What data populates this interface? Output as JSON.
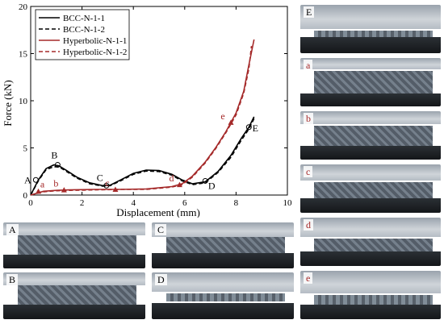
{
  "chart_data": {
    "type": "line",
    "xlabel": "Displacement (mm)",
    "ylabel": "Force (kN)",
    "xlim": [
      0,
      10
    ],
    "ylim": [
      0,
      20
    ],
    "xticks": [
      "0",
      "2",
      "4",
      "6",
      "8",
      "10"
    ],
    "yticks": [
      "0",
      "5",
      "10",
      "15",
      "20"
    ],
    "grid": false,
    "legend_position": "top-left",
    "series": [
      {
        "name": "BCC-N-1-1",
        "color": "#000000",
        "dash": "solid",
        "x": [
          0,
          0.3,
          0.6,
          0.9,
          1.1,
          1.4,
          1.8,
          2.3,
          2.8,
          3.1,
          3.5,
          4.0,
          4.5,
          5.0,
          5.5,
          5.9,
          6.3,
          6.8,
          7.3,
          7.8,
          8.2,
          8.5,
          8.7
        ],
        "y": [
          0,
          1.6,
          2.8,
          3.2,
          3.1,
          2.6,
          1.9,
          1.3,
          1.0,
          1.05,
          1.6,
          2.3,
          2.65,
          2.6,
          2.2,
          1.6,
          1.2,
          1.4,
          2.5,
          4.2,
          6.0,
          7.2,
          8.3
        ]
      },
      {
        "name": "BCC-N-1-2",
        "color": "#000000",
        "dash": "dashed",
        "x": [
          0,
          0.3,
          0.6,
          0.9,
          1.1,
          1.4,
          1.8,
          2.3,
          2.8,
          3.1,
          3.5,
          4.0,
          4.5,
          5.0,
          5.5,
          5.9,
          6.3,
          6.8,
          7.3,
          7.8,
          8.2,
          8.5,
          8.7
        ],
        "y": [
          0,
          1.5,
          2.7,
          3.0,
          3.0,
          2.5,
          1.8,
          1.2,
          0.95,
          1.0,
          1.5,
          2.2,
          2.55,
          2.5,
          2.1,
          1.5,
          1.1,
          1.3,
          2.4,
          4.0,
          5.8,
          7.0,
          8.1
        ]
      },
      {
        "name": "Hyperbolic-N-1-1",
        "color": "#a52a2a",
        "dash": "solid",
        "x": [
          0,
          0.5,
          1.0,
          1.5,
          2.5,
          3.5,
          4.5,
          5.5,
          5.9,
          6.3,
          6.8,
          7.2,
          7.6,
          8.0,
          8.3,
          8.5,
          8.7
        ],
        "y": [
          0,
          0.4,
          0.5,
          0.55,
          0.6,
          0.6,
          0.65,
          0.9,
          1.2,
          2.0,
          3.5,
          5.0,
          6.7,
          8.7,
          11.0,
          13.8,
          16.5
        ]
      },
      {
        "name": "Hyperbolic-N-1-2",
        "color": "#a52a2a",
        "dash": "dashed",
        "x": [
          0,
          0.5,
          1.0,
          1.5,
          2.5,
          3.5,
          4.5,
          5.5,
          5.9,
          6.3,
          6.8,
          7.2,
          7.6,
          8.0,
          8.3,
          8.5,
          8.6
        ],
        "y": [
          0,
          0.35,
          0.45,
          0.5,
          0.55,
          0.6,
          0.6,
          0.85,
          1.1,
          1.9,
          3.4,
          4.9,
          6.6,
          8.5,
          10.8,
          13.4,
          15.8
        ]
      }
    ],
    "annotations": [
      {
        "text": "A",
        "x": 0.2,
        "y": 1.6,
        "color": "#000000",
        "marker": "circle"
      },
      {
        "text": "B",
        "x": 1.05,
        "y": 3.2,
        "color": "#000000",
        "marker": "circle"
      },
      {
        "text": "C",
        "x": 2.95,
        "y": 1.0,
        "color": "#000000",
        "marker": "circle"
      },
      {
        "text": "D",
        "x": 6.8,
        "y": 1.5,
        "color": "#000000",
        "marker": "circle"
      },
      {
        "text": "E",
        "x": 8.5,
        "y": 7.2,
        "color": "#000000",
        "marker": "circle"
      },
      {
        "text": "a",
        "x": 0.3,
        "y": 0.4,
        "color": "#a52a2a",
        "marker": "triangle"
      },
      {
        "text": "b",
        "x": 1.3,
        "y": 0.55,
        "color": "#a52a2a",
        "marker": "triangle"
      },
      {
        "text": "c",
        "x": 3.3,
        "y": 0.6,
        "color": "#a52a2a",
        "marker": "triangle"
      },
      {
        "text": "d",
        "x": 5.8,
        "y": 1.1,
        "color": "#a52a2a",
        "marker": "triangle"
      },
      {
        "text": "e",
        "x": 7.8,
        "y": 7.7,
        "color": "#a52a2a",
        "marker": "triangle"
      }
    ]
  },
  "photos": {
    "bottom": [
      {
        "label": "A",
        "state": "lattice"
      },
      {
        "label": "B",
        "state": "lattice"
      },
      {
        "label": "C",
        "state": "lattice-partial"
      },
      {
        "label": "D",
        "state": "compressed"
      }
    ],
    "right": [
      {
        "label": "E",
        "state": "compressed"
      },
      {
        "label": "a",
        "state": "lattice"
      },
      {
        "label": "b",
        "state": "lattice"
      },
      {
        "label": "c",
        "state": "lattice-partial"
      },
      {
        "label": "d",
        "state": "lattice-partial"
      },
      {
        "label": "e",
        "state": "compressed"
      }
    ]
  }
}
